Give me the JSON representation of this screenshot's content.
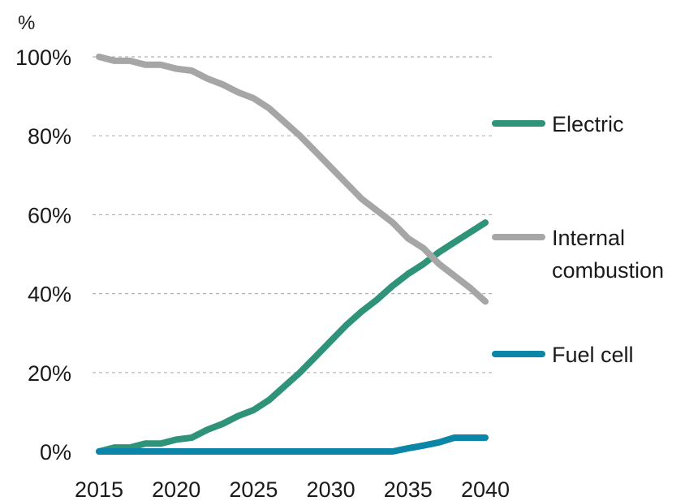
{
  "chart_data": {
    "type": "line",
    "title": "",
    "xlabel": "",
    "ylabel": "%",
    "xlim": [
      2015,
      2040
    ],
    "ylim": [
      0,
      100
    ],
    "x_ticks": [
      2015,
      2020,
      2025,
      2030,
      2035,
      2040
    ],
    "x_tick_labels": [
      "2015",
      "2020",
      "2025",
      "2030",
      "2035",
      "2040"
    ],
    "y_ticks": [
      0,
      20,
      40,
      60,
      80,
      100
    ],
    "y_tick_labels": [
      "0%",
      "20%",
      "40%",
      "60%",
      "80%",
      "100%"
    ],
    "grid": "horizontal dashed",
    "legend_placement": "right, labels beside line ends",
    "x": [
      2015,
      2016,
      2017,
      2018,
      2019,
      2020,
      2021,
      2022,
      2023,
      2024,
      2025,
      2026,
      2027,
      2028,
      2029,
      2030,
      2031,
      2032,
      2033,
      2034,
      2035,
      2036,
      2037,
      2038,
      2039,
      2040
    ],
    "series": [
      {
        "name": "Electric",
        "color": "#2e9378",
        "values": [
          0,
          1,
          1,
          2,
          2,
          3,
          3.5,
          5.5,
          7,
          9,
          10.5,
          13,
          16.5,
          20,
          24,
          28,
          32,
          35.5,
          38.5,
          42,
          45,
          47.5,
          50.5,
          53,
          55.5,
          58
        ]
      },
      {
        "name": "Internal combustion",
        "color": "#a6a6a6",
        "values": [
          100,
          99,
          99,
          98,
          98,
          97,
          96.5,
          94.5,
          93,
          91,
          89.5,
          87,
          83.5,
          80,
          76,
          72,
          68,
          64,
          61,
          58,
          54,
          51.5,
          47.5,
          44.5,
          41.5,
          38
        ]
      },
      {
        "name": "Fuel cell",
        "color": "#0b86a8",
        "values": [
          0,
          0,
          0,
          0,
          0,
          0,
          0,
          0,
          0,
          0,
          0,
          0,
          0,
          0,
          0,
          0,
          0,
          0,
          0,
          0,
          0.8,
          1.5,
          2.3,
          3.5,
          3.5,
          3.5
        ]
      }
    ],
    "legend": [
      {
        "lines": [
          "Electric"
        ],
        "series": "Electric"
      },
      {
        "lines": [
          "Internal",
          "combustion"
        ],
        "series": "Internal combustion"
      },
      {
        "lines": [
          "Fuel cell"
        ],
        "series": "Fuel cell"
      }
    ]
  }
}
